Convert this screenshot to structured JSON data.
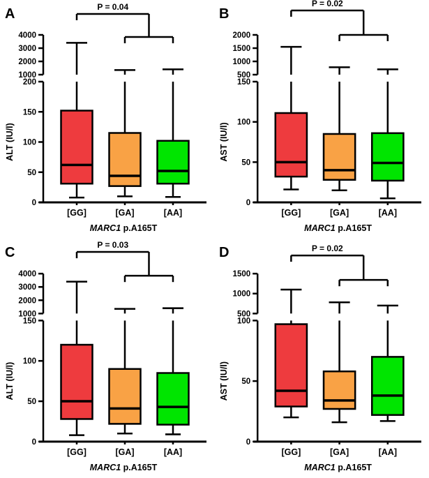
{
  "colors": {
    "gg": "#ee3b3e",
    "ga": "#f9a245",
    "aa": "#00e500",
    "line": "#000000",
    "background": "#ffffff"
  },
  "chart_data": [
    {
      "type": "box",
      "panel_label": "A",
      "ylabel": "ALT (IU/l)",
      "xlabel": {
        "gene": "MARC1",
        "suffix": " p.A165T"
      },
      "categories": [
        "[GG]",
        "[GA]",
        "[AA]"
      ],
      "axis": {
        "break": true,
        "lower": {
          "min": 0,
          "max": 200,
          "ticks": [
            0,
            50,
            100,
            150,
            200
          ]
        },
        "upper": {
          "min": 1000,
          "max": 4000,
          "ticks": [
            1000,
            2000,
            3000,
            4000
          ]
        }
      },
      "series": [
        {
          "name": "[GG]",
          "color_key": "gg",
          "low": 8,
          "q1": 31,
          "median": 62,
          "q3": 152,
          "high": 3400
        },
        {
          "name": "[GA]",
          "color_key": "ga",
          "low": 10,
          "q1": 27,
          "median": 44,
          "q3": 115,
          "high": 1350
        },
        {
          "name": "[AA]",
          "color_key": "aa",
          "low": 9,
          "q1": 31,
          "median": 52,
          "q3": 102,
          "high": 1400
        }
      ],
      "significance": {
        "label": "P = 0.04",
        "compare": "[GG] vs [GA]+[AA]",
        "main_y": 20,
        "sub_y": 53
      }
    },
    {
      "type": "box",
      "panel_label": "B",
      "ylabel": "AST (IU/l)",
      "xlabel": {
        "gene": "MARC1",
        "suffix": " p.A165T"
      },
      "categories": [
        "[GG]",
        "[GA]",
        "[AA]"
      ],
      "axis": {
        "break": true,
        "lower": {
          "min": 0,
          "max": 150,
          "ticks": [
            0,
            50,
            100,
            150
          ]
        },
        "upper": {
          "min": 500,
          "max": 2000,
          "ticks": [
            500,
            1000,
            1500,
            2000
          ]
        }
      },
      "series": [
        {
          "name": "[GG]",
          "color_key": "gg",
          "low": 16,
          "q1": 32,
          "median": 50,
          "q3": 111,
          "high": 1550
        },
        {
          "name": "[GA]",
          "color_key": "ga",
          "low": 15,
          "q1": 28,
          "median": 40,
          "q3": 85,
          "high": 780
        },
        {
          "name": "[AA]",
          "color_key": "aa",
          "low": 5,
          "q1": 27,
          "median": 49,
          "q3": 86,
          "high": 700
        }
      ],
      "significance": {
        "label": "P = 0.02",
        "compare": "[GG] vs [GA]+[AA]",
        "main_y": 15,
        "sub_y": 50
      }
    },
    {
      "type": "box",
      "panel_label": "C",
      "ylabel": "ALT (IU/l)",
      "xlabel": {
        "gene": "MARC1",
        "suffix": " p.A165T"
      },
      "categories": [
        "[GG]",
        "[GA]",
        "[AA]"
      ],
      "axis": {
        "break": true,
        "lower": {
          "min": 0,
          "max": 150,
          "ticks": [
            0,
            50,
            100,
            150
          ]
        },
        "upper": {
          "min": 1000,
          "max": 4000,
          "ticks": [
            1000,
            2000,
            3000,
            4000
          ]
        }
      },
      "series": [
        {
          "name": "[GG]",
          "color_key": "gg",
          "low": 8,
          "q1": 28,
          "median": 50,
          "q3": 120,
          "high": 3400
        },
        {
          "name": "[GA]",
          "color_key": "ga",
          "low": 10,
          "q1": 22,
          "median": 41,
          "q3": 90,
          "high": 1350
        },
        {
          "name": "[AA]",
          "color_key": "aa",
          "low": 9,
          "q1": 21,
          "median": 43,
          "q3": 85,
          "high": 1400
        }
      ],
      "significance": {
        "label": "P = 0.03",
        "compare": "[GG] vs [GA]+[AA]",
        "main_y": 19,
        "sub_y": 53
      }
    },
    {
      "type": "box",
      "panel_label": "D",
      "ylabel": "AST (IU/l)",
      "xlabel": {
        "gene": "MARC1",
        "suffix": " p.A165T"
      },
      "categories": [
        "[GG]",
        "[GA]",
        "[AA]"
      ],
      "axis": {
        "break": true,
        "lower": {
          "min": 0,
          "max": 100,
          "ticks": [
            0,
            50,
            100
          ]
        },
        "upper": {
          "min": 500,
          "max": 1500,
          "ticks": [
            500,
            1000,
            1500
          ]
        }
      },
      "series": [
        {
          "name": "[GG]",
          "color_key": "gg",
          "low": 20,
          "q1": 29,
          "median": 42,
          "q3": 97,
          "high": 1100
        },
        {
          "name": "[GA]",
          "color_key": "ga",
          "low": 16,
          "q1": 27,
          "median": 34,
          "q3": 58,
          "high": 780
        },
        {
          "name": "[AA]",
          "color_key": "aa",
          "low": 17,
          "q1": 22,
          "median": 38,
          "q3": 70,
          "high": 700
        }
      ],
      "significance": {
        "label": "P = 0.02",
        "compare": "[GG] vs [GA]+[AA]",
        "main_y": 24,
        "sub_y": 59
      }
    }
  ]
}
